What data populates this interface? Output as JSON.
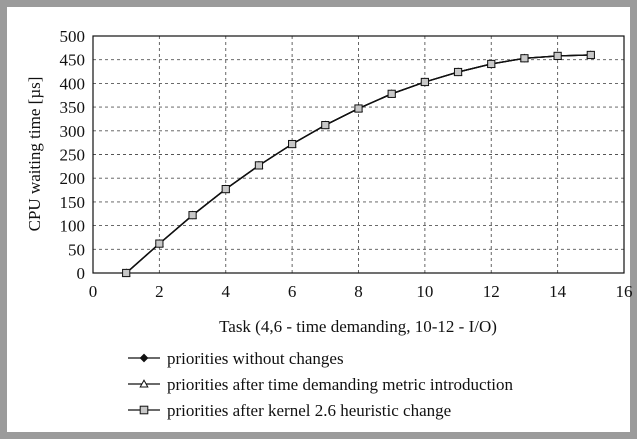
{
  "chart_data": {
    "type": "line",
    "title": "",
    "xlabel": "Task (4,6 - time demanding, 10-12 - I/O)",
    "ylabel": "CPU waiting time [µs]",
    "xlim": [
      0,
      16
    ],
    "ylim": [
      0,
      500
    ],
    "xticks": [
      0,
      2,
      4,
      6,
      8,
      10,
      12,
      14,
      16
    ],
    "yticks": [
      0,
      50,
      100,
      150,
      200,
      250,
      300,
      350,
      400,
      450,
      500
    ],
    "grid": true,
    "legend_position": "bottom",
    "x": [
      1,
      2,
      3,
      4,
      5,
      6,
      7,
      8,
      9,
      10,
      11,
      12,
      13,
      14,
      15
    ],
    "series": [
      {
        "name": "priorities without changes",
        "marker": "diamond",
        "values": [
          0,
          62,
          122,
          177,
          227,
          272,
          312,
          347,
          378,
          403,
          424,
          441,
          453,
          458,
          460
        ]
      },
      {
        "name": "priorities after time demanding metric introduction",
        "marker": "triangle",
        "values": [
          0,
          62,
          122,
          177,
          227,
          272,
          312,
          347,
          378,
          403,
          424,
          441,
          453,
          458,
          460
        ]
      },
      {
        "name": "priorities after kernel 2.6 heuristic change",
        "marker": "square",
        "values": [
          0,
          62,
          122,
          177,
          227,
          272,
          312,
          347,
          378,
          403,
          424,
          441,
          453,
          458,
          460
        ]
      }
    ]
  }
}
